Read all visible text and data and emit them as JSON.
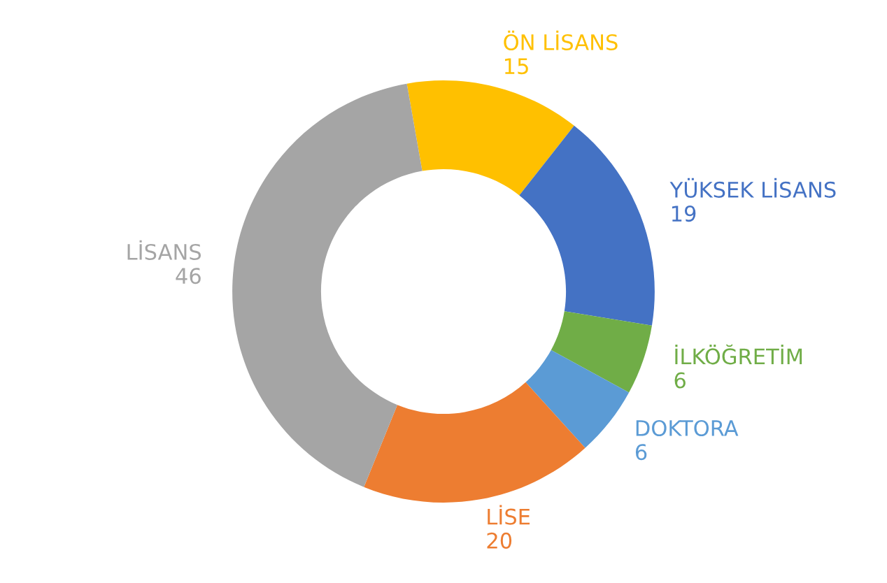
{
  "chart_data": {
    "type": "donut",
    "categories": [
      "ÖN LİSANS",
      "YÜKSEK LİSANS",
      "İLKÖĞRETİM",
      "DOKTORA",
      "LİSE",
      "LİSANS"
    ],
    "values": [
      15,
      19,
      6,
      6,
      20,
      46
    ],
    "colors": [
      "#ffc000",
      "#4472c4",
      "#70ad47",
      "#5b9bd5",
      "#ed7d31",
      "#a5a5a5"
    ],
    "data_labels": true
  }
}
